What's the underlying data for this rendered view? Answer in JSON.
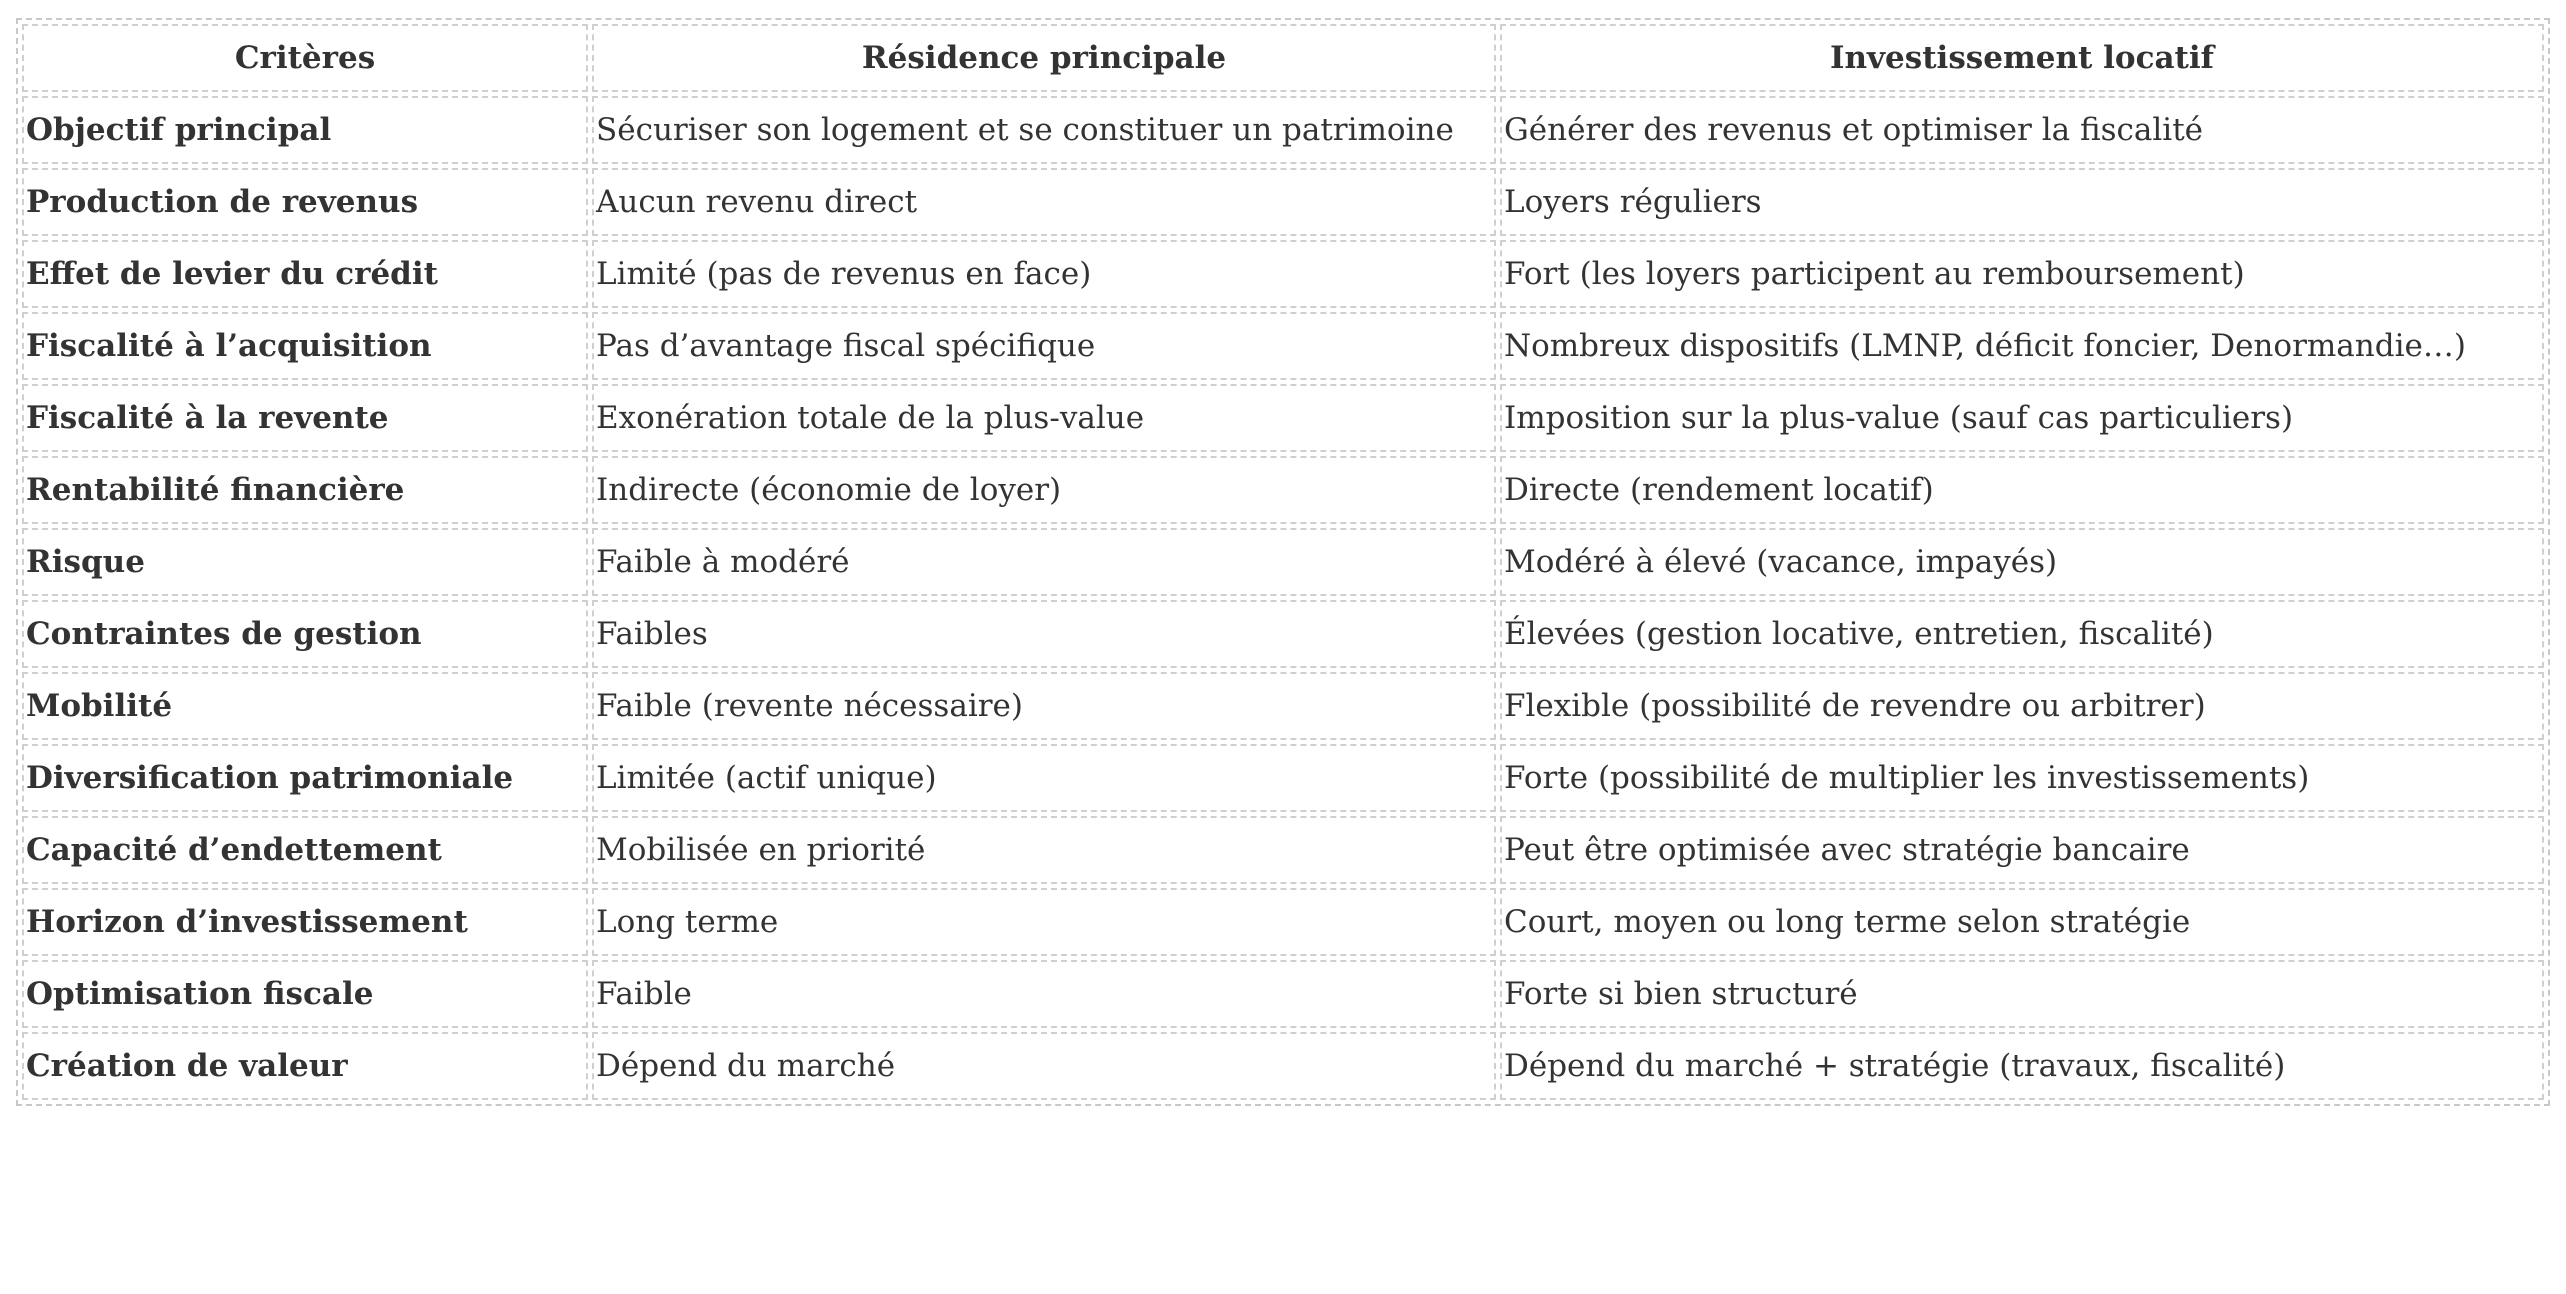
{
  "headers": [
    "Critères",
    "Résidence principale",
    "Investissement locatif"
  ],
  "rows": [
    [
      "Objectif principal",
      "Sécuriser son logement et se constituer un patrimoine",
      "Générer des revenus et optimiser la fiscalité"
    ],
    [
      "Production de revenus",
      "Aucun revenu direct",
      "Loyers réguliers"
    ],
    [
      "Effet de levier du crédit",
      "Limité (pas de revenus en face)",
      "Fort (les loyers participent au remboursement)"
    ],
    [
      "Fiscalité à l’acquisition",
      "Pas d’avantage fiscal spécifique",
      "Nombreux dispositifs (LMNP, déficit foncier, Denormandie…)"
    ],
    [
      "Fiscalité à la revente",
      "Exonération totale de la plus-value",
      "Imposition sur la plus-value (sauf cas particuliers)"
    ],
    [
      "Rentabilité financière",
      "Indirecte (économie de loyer)",
      "Directe (rendement locatif)"
    ],
    [
      "Risque",
      "Faible à modéré",
      "Modéré à élevé (vacance, impayés)"
    ],
    [
      "Contraintes de gestion",
      "Faibles",
      "Élevées (gestion locative, entretien, fiscalité)"
    ],
    [
      "Mobilité",
      "Faible (revente nécessaire)",
      "Flexible (possibilité de revendre ou arbitrer)"
    ],
    [
      "Diversification patrimoniale",
      "Limitée (actif unique)",
      "Forte (possibilité de multiplier les investissements)"
    ],
    [
      "Capacité d’endettement",
      "Mobilisée en priorité",
      "Peut être optimisée avec stratégie bancaire"
    ],
    [
      "Horizon d’investissement",
      "Long terme",
      "Court, moyen ou long terme selon stratégie"
    ],
    [
      "Optimisation fiscale",
      "Faible",
      "Forte si bien structuré"
    ],
    [
      "Création de valeur",
      "Dépend du marché",
      "Dépend du marché + stratégie (travaux, fiscalité)"
    ]
  ]
}
